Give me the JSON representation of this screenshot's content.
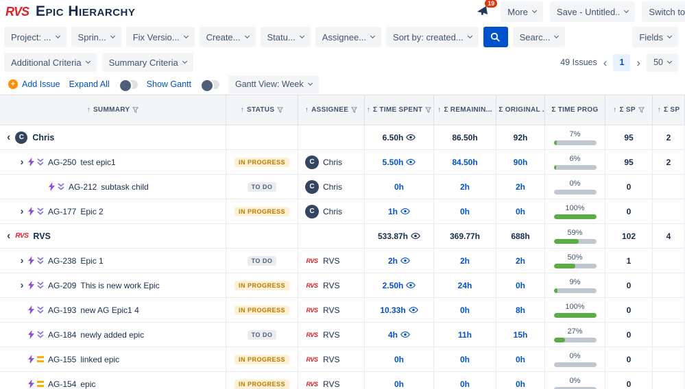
{
  "colors": {
    "accent_blue": "#0052CC",
    "progress_green": "#5AAC44",
    "status_inprogress": "#C07600",
    "status_todo": "#505F79",
    "logo_red": "#E12026",
    "badge_red": "#DE350B"
  },
  "header": {
    "logo": "RVS",
    "title": "Epic Hierarchy",
    "notification_badge": "19",
    "more_label": "More",
    "save_label": "Save - Untitled..",
    "switch_label": "Switch to..."
  },
  "filters": {
    "project": "Project: ...",
    "sprint": "Sprin...",
    "fix_version": "Fix Versio...",
    "created": "Create...",
    "status": "Statu...",
    "assignee": "Assignee...",
    "sort_by": "Sort by: created...",
    "search": "Searc...",
    "fields": "Fields"
  },
  "criteria": {
    "additional": "Additional Criteria",
    "summary": "Summary Criteria",
    "issues_count": "49 Issues",
    "prev": "‹",
    "page": "1",
    "next": "›",
    "page_size": "50"
  },
  "toolbar": {
    "add_issue": "Add Issue",
    "expand_all": "Expand All",
    "show_gantt": "Show Gantt",
    "gantt_view": "Gantt View: Week"
  },
  "table": {
    "columns": [
      "SUMMARY",
      "STATUS",
      "ASSIGNEE",
      "Σ TIME SPENT",
      "Σ REMAININ...",
      "Σ ORIGINAL ...",
      "Σ TIME PROG",
      "Σ SP",
      "Σ SP"
    ],
    "rows": [
      {
        "kind": "group",
        "label": "Chris",
        "avatar": "chris",
        "time_spent": "6.50h",
        "eye": true,
        "remaining": "86.50h",
        "original": "92h",
        "progress": 7,
        "progress_label": "7%",
        "sp": "95",
        "sp2": "2"
      },
      {
        "kind": "issue",
        "indent": 1,
        "expander": true,
        "icon2": "chevrons",
        "key": "AG-250",
        "summary": "test epic1",
        "status": "IN PROGRESS",
        "status_kind": "inprogress",
        "assignee": "chris",
        "assignee_name": "Chris",
        "time_spent": "5.50h",
        "eye": true,
        "remaining": "84.50h",
        "original": "90h",
        "progress": 6,
        "progress_label": "6%",
        "sp": "95",
        "sp2": "2"
      },
      {
        "kind": "issue",
        "indent": 2,
        "expander": false,
        "icon2": "chevrons",
        "key": "AG-212",
        "summary": "subtask child",
        "status": "TO DO",
        "status_kind": "todo",
        "assignee": "chris",
        "assignee_name": "Chris",
        "time_spent": "0h",
        "eye": false,
        "remaining": "2h",
        "original": "2h",
        "progress": 0,
        "progress_label": "0%",
        "sp": "0",
        "sp2": ""
      },
      {
        "kind": "issue",
        "indent": 1,
        "expander": true,
        "icon2": "chevrons",
        "key": "AG-177",
        "summary": "Epic 2",
        "status": "IN PROGRESS",
        "status_kind": "inprogress",
        "assignee": "chris",
        "assignee_name": "Chris",
        "time_spent": "1h",
        "eye": true,
        "remaining": "0h",
        "original": "0h",
        "progress": 100,
        "progress_label": "100%",
        "sp": "0",
        "sp2": ""
      },
      {
        "kind": "group",
        "label": "RVS",
        "avatar": "rvs",
        "time_spent": "533.87h",
        "eye": true,
        "remaining": "369.77h",
        "original": "688h",
        "progress": 59,
        "progress_label": "59%",
        "sp": "102",
        "sp2": "4"
      },
      {
        "kind": "issue",
        "indent": 1,
        "expander": true,
        "icon2": "chevrons",
        "key": "AG-238",
        "summary": "Epic 1",
        "status": "TO DO",
        "status_kind": "todo",
        "assignee": "rvs",
        "assignee_name": "RVS",
        "time_spent": "2h",
        "eye": true,
        "remaining": "2h",
        "original": "2h",
        "progress": 50,
        "progress_label": "50%",
        "sp": "1",
        "sp2": ""
      },
      {
        "kind": "issue",
        "indent": 1,
        "expander": true,
        "icon2": "chevrons",
        "key": "AG-209",
        "summary": "This is new work Epic",
        "status": "IN PROGRESS",
        "status_kind": "inprogress",
        "assignee": "rvs",
        "assignee_name": "RVS",
        "time_spent": "2.50h",
        "eye": true,
        "remaining": "24h",
        "original": "0h",
        "progress": 9,
        "progress_label": "9%",
        "sp": "0",
        "sp2": ""
      },
      {
        "kind": "issue",
        "indent": 1,
        "expander": false,
        "icon2": "chevrons",
        "key": "AG-193",
        "summary": "new AG Epic1 4",
        "status": "IN PROGRESS",
        "status_kind": "inprogress",
        "assignee": "rvs",
        "assignee_name": "RVS",
        "time_spent": "10.33h",
        "eye": true,
        "remaining": "0h",
        "original": "8h",
        "progress": 100,
        "progress_label": "100%",
        "sp": "0",
        "sp2": ""
      },
      {
        "kind": "issue",
        "indent": 1,
        "expander": false,
        "icon2": "chevrons",
        "key": "AG-184",
        "summary": "newly added epic",
        "status": "TO DO",
        "status_kind": "todo",
        "assignee": "rvs",
        "assignee_name": "RVS",
        "time_spent": "4h",
        "eye": true,
        "remaining": "11h",
        "original": "15h",
        "progress": 27,
        "progress_label": "27%",
        "sp": "0",
        "sp2": ""
      },
      {
        "kind": "issue",
        "indent": 1,
        "expander": false,
        "icon2": "equals",
        "key": "AG-155",
        "summary": "linked epic",
        "status": "IN PROGRESS",
        "status_kind": "inprogress",
        "assignee": "rvs",
        "assignee_name": "RVS",
        "time_spent": "0h",
        "eye": false,
        "remaining": "0h",
        "original": "0h",
        "progress": 0,
        "progress_label": "0%",
        "sp": "0",
        "sp2": ""
      },
      {
        "kind": "issue",
        "indent": 1,
        "expander": false,
        "icon2": "equals",
        "key": "AG-154",
        "summary": "epic",
        "status": "IN PROGRESS",
        "status_kind": "inprogress",
        "assignee": "rvs",
        "assignee_name": "RVS",
        "time_spent": "0h",
        "eye": false,
        "remaining": "0h",
        "original": "0h",
        "progress": 0,
        "progress_label": "0%",
        "sp": "0",
        "sp2": ""
      }
    ]
  }
}
